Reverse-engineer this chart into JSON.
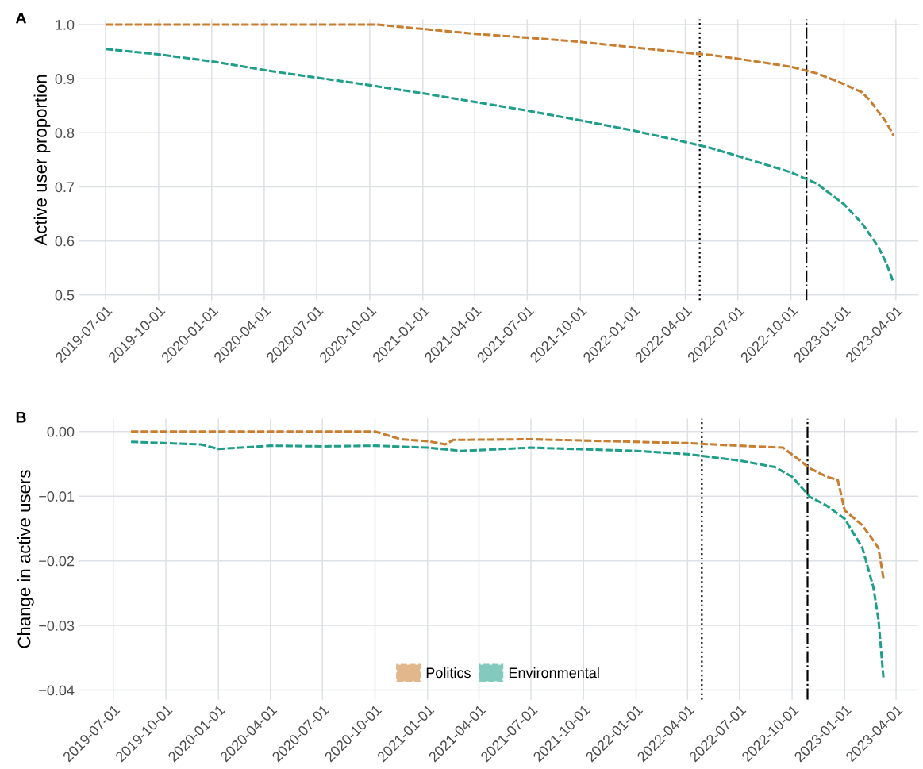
{
  "chart_data": [
    {
      "type": "line",
      "title": "A",
      "ylabel": "Active user proportion",
      "line_style": "dashed",
      "grid": true,
      "xlim": [
        "2019-05-15",
        "2023-05-10"
      ],
      "ylim": [
        0.49,
        1.01
      ],
      "xticks": [
        "2019-07-01",
        "2019-10-01",
        "2020-01-01",
        "2020-04-01",
        "2020-07-01",
        "2020-10-01",
        "2021-01-01",
        "2021-04-01",
        "2021-07-01",
        "2021-10-01",
        "2022-01-01",
        "2022-04-01",
        "2022-07-01",
        "2022-10-01",
        "2023-01-01",
        "2023-04-01"
      ],
      "yticks": [
        0.5,
        0.6,
        0.7,
        0.8,
        0.9,
        {
          "value": 1.0,
          "label": "1.0"
        }
      ],
      "series": [
        {
          "color": "#c97d2e",
          "x": [
            "2019-07-01",
            "2020-01-01",
            "2020-07-01",
            "2020-10-15",
            "2020-12-01",
            "2021-04-01",
            "2021-07-01",
            "2021-10-01",
            "2022-01-01",
            "2022-04-01",
            "2022-05-15",
            "2022-07-01",
            "2022-10-01",
            "2022-11-15",
            "2023-01-01",
            "2023-02-01",
            "2023-02-15",
            "2023-03-01",
            "2023-03-15",
            "2023-03-28"
          ],
          "values": [
            1.0,
            1.0,
            1.0,
            1.0,
            0.995,
            0.983,
            0.976,
            0.968,
            0.958,
            0.948,
            0.944,
            0.937,
            0.922,
            0.91,
            0.89,
            0.875,
            0.86,
            0.84,
            0.82,
            0.795
          ]
        },
        {
          "color": "#1f9e89",
          "x": [
            "2019-07-01",
            "2019-10-01",
            "2020-01-01",
            "2020-04-01",
            "2020-07-01",
            "2020-10-01",
            "2021-01-01",
            "2021-04-01",
            "2021-07-01",
            "2021-10-01",
            "2022-01-01",
            "2022-04-01",
            "2022-05-15",
            "2022-07-01",
            "2022-10-01",
            "2022-11-15",
            "2023-01-01",
            "2023-02-01",
            "2023-03-01",
            "2023-03-15",
            "2023-03-28"
          ],
          "values": [
            0.955,
            0.945,
            0.932,
            0.916,
            0.902,
            0.888,
            0.873,
            0.857,
            0.841,
            0.823,
            0.804,
            0.783,
            0.772,
            0.757,
            0.727,
            0.706,
            0.668,
            0.633,
            0.59,
            0.56,
            0.523
          ]
        }
      ],
      "ref_lines": [
        {
          "axis": "x",
          "value": "2022-04-26",
          "color": "#000000",
          "line_style": "dotted"
        },
        {
          "axis": "x",
          "value": "2022-10-28",
          "color": "#000000",
          "line_style": "dashdot"
        }
      ]
    },
    {
      "type": "line",
      "title": "B",
      "ylabel": "Change in active users",
      "line_style": "dashed",
      "grid": true,
      "legend": "bottom",
      "xlim": [
        "2019-05-01",
        "2023-05-10"
      ],
      "ylim": [
        -0.0415,
        0.002
      ],
      "xticks": [
        "2019-07-01",
        "2019-10-01",
        "2020-01-01",
        "2020-04-01",
        "2020-07-01",
        "2020-10-01",
        "2021-01-01",
        "2021-04-01",
        "2021-07-01",
        "2021-10-01",
        "2022-01-01",
        "2022-04-01",
        "2022-07-01",
        "2022-10-01",
        "2023-01-01",
        "2023-04-01"
      ],
      "yticks": [
        {
          "value": -0.04,
          "label": "−0.04"
        },
        {
          "value": -0.03,
          "label": "−0.03"
        },
        {
          "value": -0.02,
          "label": "−0.02"
        },
        {
          "value": -0.01,
          "label": "−0.01"
        },
        {
          "value": 0.0,
          "label": "0.00"
        }
      ],
      "series": [
        {
          "name": "Politics",
          "color": "#c97d2e",
          "x": [
            "2019-08-01",
            "2020-04-01",
            "2020-10-01",
            "2020-11-15",
            "2021-01-01",
            "2021-02-01",
            "2021-02-15",
            "2021-07-01",
            "2022-01-01",
            "2022-04-01",
            "2022-07-01",
            "2022-09-15",
            "2022-10-15",
            "2022-11-01",
            "2022-12-01",
            "2022-12-20",
            "2023-01-01",
            "2023-02-01",
            "2023-03-01",
            "2023-03-10"
          ],
          "values": [
            0.0,
            0.0,
            0.0,
            -0.0012,
            -0.0015,
            -0.002,
            -0.0013,
            -0.0012,
            -0.0016,
            -0.0018,
            -0.0022,
            -0.0025,
            -0.0045,
            -0.0057,
            -0.007,
            -0.0075,
            -0.0122,
            -0.0145,
            -0.018,
            -0.0228
          ]
        },
        {
          "name": "Environmental",
          "color": "#1f9e89",
          "x": [
            "2019-08-01",
            "2019-12-01",
            "2020-01-01",
            "2020-04-01",
            "2020-07-01",
            "2020-10-01",
            "2021-01-01",
            "2021-03-01",
            "2021-07-01",
            "2022-01-01",
            "2022-04-01",
            "2022-07-01",
            "2022-09-01",
            "2022-10-01",
            "2022-11-01",
            "2022-12-01",
            "2023-01-01",
            "2023-02-01",
            "2023-02-20",
            "2023-03-01",
            "2023-03-10"
          ],
          "values": [
            -0.0016,
            -0.002,
            -0.0027,
            -0.0022,
            -0.0023,
            -0.0022,
            -0.0025,
            -0.003,
            -0.0025,
            -0.003,
            -0.0035,
            -0.0045,
            -0.0055,
            -0.007,
            -0.0101,
            -0.0115,
            -0.0135,
            -0.018,
            -0.024,
            -0.029,
            -0.0382
          ]
        }
      ],
      "ref_lines": [
        {
          "axis": "x",
          "value": "2022-04-26",
          "color": "#000000",
          "line_style": "dotted"
        },
        {
          "axis": "x",
          "value": "2022-10-28",
          "color": "#000000",
          "line_style": "dashdot"
        }
      ]
    }
  ]
}
